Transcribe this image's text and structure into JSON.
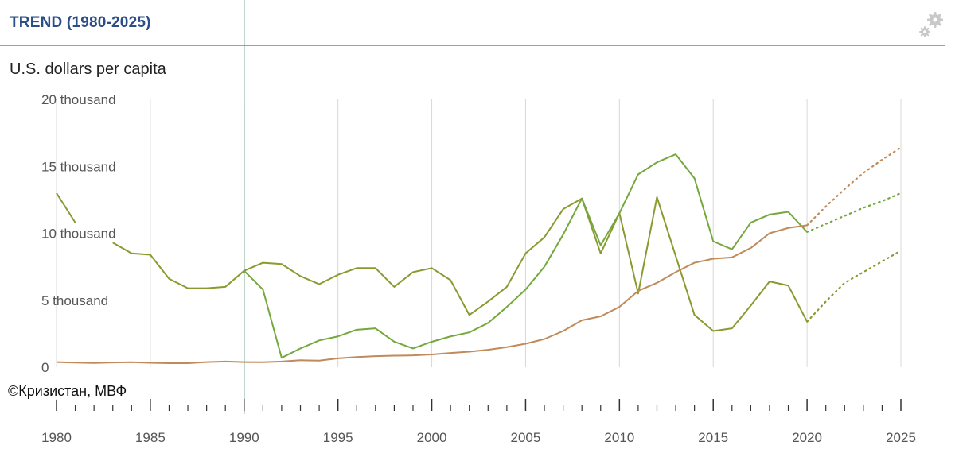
{
  "header": {
    "title": "TREND (1980-2025)",
    "settings_icon": "gear-icon"
  },
  "source": "©Кризистан, МВФ",
  "colors": {
    "title": "#2b4e86",
    "olive": "#8a9a2e",
    "green": "#74a83c",
    "tan": "#c08a5a",
    "marker": "#6f9e8a",
    "grid": "#d8d8d8"
  },
  "chart_data": {
    "type": "line",
    "ylabel": "U.S. dollars per capita",
    "xlim": [
      1980,
      2025
    ],
    "ylim": [
      0,
      20000
    ],
    "x_ticks": [
      1980,
      1985,
      1990,
      1995,
      2000,
      2005,
      2010,
      2015,
      2020,
      2025
    ],
    "x_tick_labels": [
      "1980",
      "1985",
      "1990",
      "1995",
      "2000",
      "2005",
      "2010",
      "2015",
      "2020",
      "2025"
    ],
    "y_ticks": [
      0,
      5000,
      10000,
      15000,
      20000
    ],
    "y_tick_labels": [
      "0",
      "5 thousand",
      "10 thousand",
      "15 thousand",
      "20 thousand"
    ],
    "grid": "vertical",
    "highlight_year": 1990,
    "series": [
      {
        "color": "#8a9a2e",
        "x": [
          1980,
          1981,
          1982,
          1983,
          1984,
          1985,
          1986,
          1987,
          1988,
          1989,
          1990,
          1991,
          1992,
          1993,
          1994,
          1995,
          1996,
          1997,
          1998,
          1999,
          2000,
          2001,
          2002,
          2003,
          2004,
          2005,
          2006,
          2007,
          2008,
          2009,
          2010,
          2011,
          2012,
          2013,
          2014,
          2015,
          2016,
          2017,
          2018,
          2019,
          2020
        ],
        "y": [
          13000,
          10800,
          10300,
          9300,
          8500,
          8400,
          6600,
          5900,
          5900,
          6000,
          7200,
          7800,
          7700,
          6800,
          6200,
          6900,
          7400,
          7400,
          6000,
          7100,
          7400,
          6500,
          3900,
          4900,
          6000,
          8500,
          9700,
          11800,
          12600,
          8500,
          11500,
          5500,
          12700,
          8300,
          3900,
          2700,
          2900,
          4600,
          6400,
          6100,
          3400
        ],
        "forecast_x": [
          2020,
          2021,
          2022,
          2023,
          2024,
          2025
        ],
        "forecast_y": [
          3400,
          4900,
          6300,
          7100,
          7900,
          8700
        ],
        "gaps": [
          [
            1981,
            1983
          ]
        ]
      },
      {
        "color": "#74a83c",
        "x": [
          1990,
          1991,
          1992,
          1993,
          1994,
          1995,
          1996,
          1997,
          1998,
          1999,
          2000,
          2001,
          2002,
          2003,
          2004,
          2005,
          2006,
          2007,
          2008,
          2009,
          2010,
          2011,
          2012,
          2013,
          2014,
          2015,
          2016,
          2017,
          2018,
          2019,
          2020
        ],
        "y": [
          7200,
          5800,
          700,
          1400,
          2000,
          2300,
          2800,
          2900,
          1900,
          1400,
          1900,
          2300,
          2600,
          3300,
          4500,
          5800,
          7500,
          9900,
          12600,
          9100,
          11500,
          14400,
          15300,
          15900,
          14100,
          9400,
          8800,
          10800,
          11400,
          11600,
          10100
        ],
        "forecast_x": [
          2020,
          2021,
          2022,
          2023,
          2024,
          2025
        ],
        "forecast_y": [
          10100,
          10700,
          11300,
          11900,
          12400,
          13000
        ],
        "gaps": []
      },
      {
        "color": "#c08a5a",
        "x": [
          1980,
          1981,
          1982,
          1983,
          1984,
          1985,
          1986,
          1987,
          1988,
          1989,
          1990,
          1991,
          1992,
          1993,
          1994,
          1995,
          1996,
          1997,
          1998,
          1999,
          2000,
          2001,
          2002,
          2003,
          2004,
          2005,
          2006,
          2007,
          2008,
          2009,
          2010,
          2011,
          2012,
          2013,
          2014,
          2015,
          2016,
          2017,
          2018,
          2019,
          2020
        ],
        "y": [
          380,
          340,
          310,
          350,
          370,
          330,
          300,
          300,
          380,
          420,
          380,
          370,
          420,
          520,
          490,
          660,
          760,
          820,
          860,
          880,
          950,
          1060,
          1160,
          1300,
          1500,
          1750,
          2100,
          2700,
          3500,
          3800,
          4500,
          5700,
          6300,
          7100,
          7800,
          8100,
          8200,
          8900,
          10000,
          10400,
          10600
        ],
        "forecast_x": [
          2020,
          2021,
          2022,
          2023,
          2024,
          2025
        ],
        "forecast_y": [
          10600,
          12000,
          13300,
          14500,
          15500,
          16400
        ],
        "gaps": []
      }
    ]
  }
}
